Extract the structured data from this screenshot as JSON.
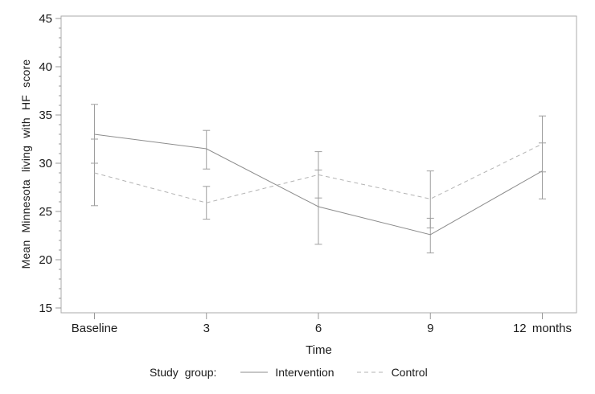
{
  "chart_data": {
    "type": "line",
    "title": "",
    "xlabel": "Time",
    "ylabel": "Mean Minnesota living with HF score",
    "categories": [
      "Baseline",
      "3",
      "6",
      "9",
      "12 months"
    ],
    "ylim": [
      15,
      45
    ],
    "yticks": [
      15,
      20,
      25,
      30,
      35,
      40,
      45
    ],
    "minor_tick_step": 1,
    "grid": false,
    "error_bars": true,
    "legend": {
      "label": "Study group:",
      "position": "bottom"
    },
    "series": [
      {
        "name": "Intervention",
        "line_style": "solid",
        "color": "#8c8c8c",
        "values": [
          33.0,
          31.5,
          25.5,
          22.6,
          29.2
        ],
        "ci_low": [
          30.0,
          29.4,
          21.6,
          20.7,
          26.3
        ],
        "ci_high": [
          36.1,
          33.4,
          29.3,
          24.3,
          32.1
        ]
      },
      {
        "name": "Control",
        "line_style": "dashed",
        "color": "#b3b3b3",
        "values": [
          29.0,
          25.9,
          28.8,
          26.3,
          32.0
        ],
        "ci_low": [
          25.6,
          24.2,
          26.4,
          23.3,
          29.1
        ],
        "ci_high": [
          32.5,
          27.6,
          31.2,
          29.2,
          34.9
        ]
      }
    ]
  },
  "colors": {
    "text": "#1a1a1a",
    "frame": "#ababab",
    "tick": "#999999",
    "error_bar": "#9e9e9e",
    "background": "#ffffff"
  }
}
